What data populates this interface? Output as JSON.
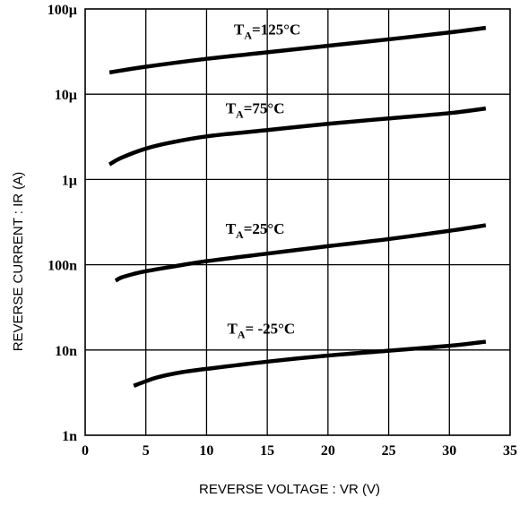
{
  "chart_data": {
    "type": "line",
    "title": "",
    "xlabel": "REVERSE  VOLTAGE : VR (V)",
    "ylabel": "REVERSE  CURRENT : IR (A)",
    "xlim": [
      0,
      35
    ],
    "ylim": [
      1e-09,
      0.0001
    ],
    "yscale": "log",
    "grid": true,
    "legend": "none",
    "x_ticks": [
      {
        "value": 0,
        "label": "0"
      },
      {
        "value": 5,
        "label": "5"
      },
      {
        "value": 10,
        "label": "10"
      },
      {
        "value": 15,
        "label": "15"
      },
      {
        "value": 20,
        "label": "20"
      },
      {
        "value": 25,
        "label": "25"
      },
      {
        "value": 30,
        "label": "30"
      },
      {
        "value": 35,
        "label": "35"
      }
    ],
    "y_ticks": [
      {
        "value": 1e-09,
        "label": "1n"
      },
      {
        "value": 1e-08,
        "label": "10n"
      },
      {
        "value": 1e-07,
        "label": "100n"
      },
      {
        "value": 1e-06,
        "label": "1µ"
      },
      {
        "value": 1e-05,
        "label": "10µ"
      },
      {
        "value": 0.0001,
        "label": "100µ"
      }
    ],
    "series": [
      {
        "name": "TA=125°C",
        "label_main": "T",
        "label_sub": "A",
        "label_rest": "=125°C",
        "label_at": {
          "x": 15,
          "y": 5e-05
        },
        "x": [
          2,
          5,
          10,
          15,
          20,
          25,
          30,
          33
        ],
        "y": [
          1.8e-05,
          2.1e-05,
          2.6e-05,
          3.1e-05,
          3.7e-05,
          4.4e-05,
          5.3e-05,
          6e-05
        ]
      },
      {
        "name": "TA=75°C",
        "label_main": "T",
        "label_sub": "A",
        "label_rest": "=75°C",
        "label_at": {
          "x": 14,
          "y": 6e-06
        },
        "x": [
          2,
          3,
          5,
          7,
          10,
          15,
          20,
          25,
          30,
          33
        ],
        "y": [
          1.5e-06,
          1.8e-06,
          2.3e-06,
          2.7e-06,
          3.2e-06,
          3.8e-06,
          4.5e-06,
          5.2e-06,
          6e-06,
          6.8e-06
        ]
      },
      {
        "name": "TA=25°C",
        "label_main": "T",
        "label_sub": "A",
        "label_rest": "=25°C",
        "label_at": {
          "x": 14,
          "y": 2.3e-07
        },
        "x": [
          2.5,
          3,
          4,
          5,
          7,
          10,
          15,
          20,
          25,
          30,
          33
        ],
        "y": [
          6.5e-08,
          7.1e-08,
          7.8e-08,
          8.4e-08,
          9.4e-08,
          1.1e-07,
          1.35e-07,
          1.65e-07,
          2e-07,
          2.5e-07,
          2.9e-07
        ]
      },
      {
        "name": "TA= -25°C",
        "label_main": "T",
        "label_sub": "A",
        "label_rest": "= -25°C",
        "label_at": {
          "x": 14.5,
          "y": 1.55e-08
        },
        "x": [
          4,
          5,
          6,
          8,
          10,
          15,
          20,
          25,
          30,
          33
        ],
        "y": [
          3.8e-09,
          4.3e-09,
          4.8e-09,
          5.5e-09,
          6e-09,
          7.3e-09,
          8.6e-09,
          9.8e-09,
          1.12e-08,
          1.25e-08
        ]
      }
    ]
  }
}
